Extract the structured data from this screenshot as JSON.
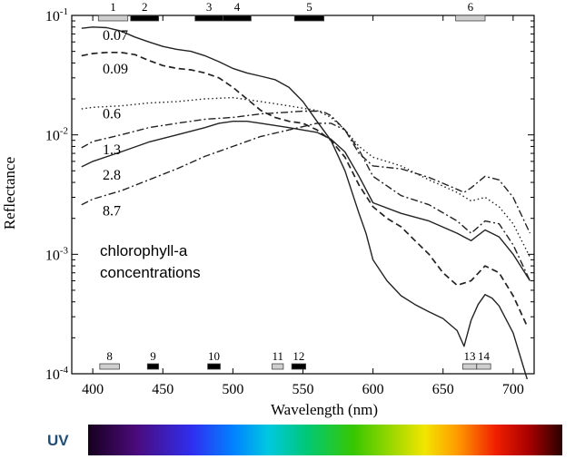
{
  "chart_data": {
    "type": "line",
    "title": "",
    "xlabel": "Wavelength (nm)",
    "ylabel": "Reflectance",
    "xlim": [
      385,
      715
    ],
    "ylim": [
      0.0001,
      0.1
    ],
    "yscale": "log",
    "grid": false,
    "x_ticks": [
      "400",
      "450",
      "500",
      "550",
      "600",
      "650",
      "700"
    ],
    "x_tick_values": [
      400,
      450,
      500,
      550,
      600,
      650,
      700
    ],
    "y_ticks": [
      {
        "base": "10",
        "exp": "-4",
        "value": 0.0001
      },
      {
        "base": "10",
        "exp": "-3",
        "value": 0.001
      },
      {
        "base": "10",
        "exp": "-2",
        "value": 0.01
      },
      {
        "base": "10",
        "exp": "-1",
        "value": 0.1
      }
    ],
    "annotation": [
      "chlorophyll-a",
      "concentrations"
    ],
    "series": [
      {
        "name": "0.07",
        "style": "solid",
        "x": [
          392,
          400,
          410,
          420,
          430,
          440,
          450,
          460,
          470,
          480,
          490,
          500,
          510,
          520,
          530,
          540,
          550,
          560,
          570,
          580,
          590,
          595,
          600,
          610,
          620,
          630,
          640,
          650,
          660,
          665,
          670,
          675,
          680,
          685,
          690,
          700,
          710
        ],
        "y": [
          0.078,
          0.08,
          0.079,
          0.074,
          0.066,
          0.06,
          0.055,
          0.052,
          0.05,
          0.046,
          0.041,
          0.036,
          0.033,
          0.031,
          0.029,
          0.025,
          0.019,
          0.013,
          0.009,
          0.005,
          0.0022,
          0.0015,
          0.0009,
          0.0006,
          0.00045,
          0.00038,
          0.00033,
          0.00029,
          0.00023,
          0.00017,
          0.00028,
          0.00038,
          0.00046,
          0.00043,
          0.00037,
          0.00022,
          9e-05
        ]
      },
      {
        "name": "0.09",
        "style": "dashed",
        "x": [
          392,
          400,
          410,
          420,
          430,
          440,
          450,
          460,
          470,
          480,
          490,
          500,
          510,
          520,
          530,
          540,
          550,
          560,
          570,
          580,
          590,
          600,
          610,
          620,
          630,
          640,
          650,
          660,
          670,
          680,
          690,
          700,
          710
        ],
        "y": [
          0.046,
          0.048,
          0.049,
          0.049,
          0.047,
          0.042,
          0.038,
          0.036,
          0.035,
          0.033,
          0.03,
          0.025,
          0.02,
          0.016,
          0.014,
          0.013,
          0.0125,
          0.011,
          0.009,
          0.0065,
          0.0038,
          0.0025,
          0.002,
          0.0017,
          0.0013,
          0.001,
          0.0007,
          0.00055,
          0.0006,
          0.0008,
          0.0007,
          0.00045,
          0.00025
        ]
      },
      {
        "name": "0.6",
        "style": "dotted",
        "x": [
          392,
          400,
          420,
          440,
          460,
          480,
          500,
          520,
          540,
          560,
          570,
          580,
          590,
          600,
          620,
          640,
          660,
          670,
          680,
          690,
          700,
          712
        ],
        "y": [
          0.0165,
          0.017,
          0.0175,
          0.0185,
          0.019,
          0.02,
          0.0205,
          0.019,
          0.0175,
          0.016,
          0.014,
          0.011,
          0.008,
          0.0065,
          0.0055,
          0.0042,
          0.0033,
          0.0028,
          0.003,
          0.0025,
          0.0018,
          0.00095
        ]
      },
      {
        "name": "1.3",
        "style": "dashdot",
        "x": [
          392,
          400,
          420,
          440,
          460,
          480,
          500,
          520,
          540,
          550,
          560,
          565,
          570,
          580,
          590,
          600,
          620,
          640,
          660,
          665,
          670,
          680,
          690,
          700,
          712
        ],
        "y": [
          0.0078,
          0.0088,
          0.01,
          0.0115,
          0.0125,
          0.0135,
          0.014,
          0.015,
          0.0155,
          0.0158,
          0.0158,
          0.0155,
          0.0145,
          0.011,
          0.007,
          0.0055,
          0.0052,
          0.0044,
          0.0035,
          0.0033,
          0.0036,
          0.0045,
          0.0042,
          0.003,
          0.0015
        ]
      },
      {
        "name": "2.8",
        "style": "solid",
        "x": [
          392,
          400,
          420,
          440,
          460,
          480,
          490,
          500,
          510,
          520,
          540,
          560,
          570,
          580,
          590,
          600,
          620,
          640,
          660,
          670,
          680,
          690,
          700,
          712
        ],
        "y": [
          0.0054,
          0.006,
          0.0072,
          0.0087,
          0.01,
          0.0115,
          0.0125,
          0.013,
          0.013,
          0.0125,
          0.0115,
          0.0105,
          0.0092,
          0.0072,
          0.0045,
          0.0027,
          0.0022,
          0.0019,
          0.0015,
          0.0013,
          0.0016,
          0.0014,
          0.001,
          0.0006
        ]
      },
      {
        "name": "8.7",
        "style": "dashdot",
        "x": [
          392,
          400,
          420,
          440,
          460,
          480,
          500,
          520,
          540,
          560,
          570,
          580,
          590,
          600,
          620,
          640,
          660,
          670,
          680,
          690,
          700,
          712
        ],
        "y": [
          0.0026,
          0.0029,
          0.0034,
          0.0042,
          0.0052,
          0.0066,
          0.008,
          0.0097,
          0.011,
          0.0125,
          0.0125,
          0.011,
          0.0075,
          0.0045,
          0.0031,
          0.0026,
          0.0019,
          0.0015,
          0.0019,
          0.0018,
          0.0012,
          0.0006
        ]
      }
    ],
    "band_markers_top": [
      {
        "label": "1",
        "x1": 404,
        "x2": 425,
        "fill": "light"
      },
      {
        "label": "2",
        "x1": 427,
        "x2": 447,
        "fill": "dark"
      },
      {
        "label": "3",
        "x1": 473,
        "x2": 493,
        "fill": "dark"
      },
      {
        "label": "4",
        "x1": 493,
        "x2": 513,
        "fill": "dark"
      },
      {
        "label": "5",
        "x1": 544,
        "x2": 565,
        "fill": "dark"
      },
      {
        "label": "6",
        "x1": 659,
        "x2": 680,
        "fill": "light"
      }
    ],
    "band_markers_bottom": [
      {
        "label": "8",
        "x1": 405,
        "x2": 419,
        "fill": "light"
      },
      {
        "label": "9",
        "x1": 439,
        "x2": 447,
        "fill": "dark"
      },
      {
        "label": "10",
        "x1": 482,
        "x2": 491,
        "fill": "dark"
      },
      {
        "label": "11",
        "x1": 528,
        "x2": 536,
        "fill": "light"
      },
      {
        "label": "12",
        "x1": 542,
        "x2": 552,
        "fill": "dark"
      },
      {
        "label": "13",
        "x1": 664,
        "x2": 674,
        "fill": "light"
      },
      {
        "label": "14",
        "x1": 674,
        "x2": 684,
        "fill": "light"
      }
    ],
    "spectrum_label": "UV"
  }
}
